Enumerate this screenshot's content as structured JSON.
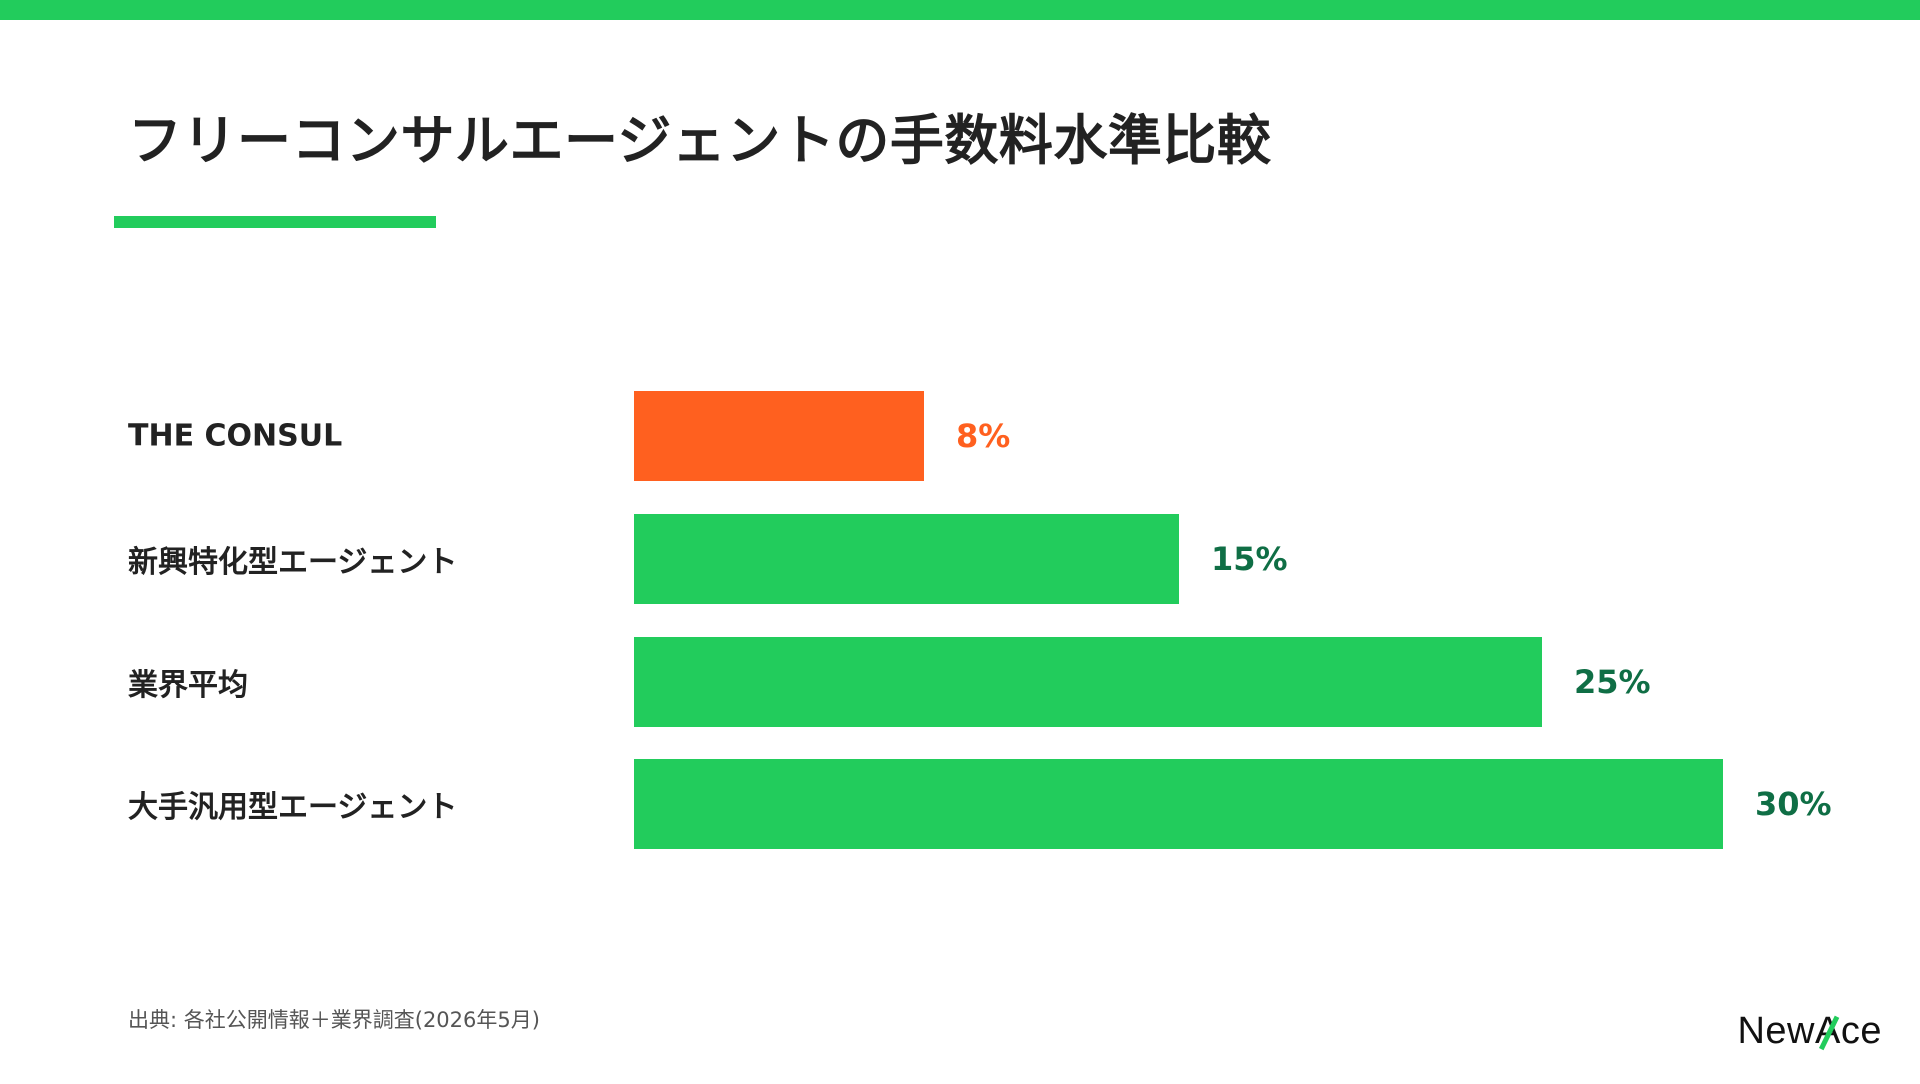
{
  "colors": {
    "accent_green": "#22CC5C",
    "highlight_orange": "#FF601F",
    "value_green_text": "#0F6E45",
    "title_text": "#222222"
  },
  "header": {
    "title": "フリーコンサルエージェントの手数料水準比較"
  },
  "footer": {
    "source": "出典: 各社公開情報＋業界調査(2026年5月)",
    "logo_prefix": "NewA",
    "logo_suffix": "ce"
  },
  "chart_data": {
    "type": "bar",
    "orientation": "horizontal",
    "title": "フリーコンサルエージェントの手数料水準比較",
    "categories": [
      "THE CONSUL",
      "新興特化型エージェント",
      "業界平均",
      "大手汎用型エージェント"
    ],
    "values": [
      8,
      15,
      25,
      30
    ],
    "value_labels": [
      "8%",
      "15%",
      "25%",
      "30%"
    ],
    "unit": "%",
    "highlight_index": 0,
    "xlim": [
      0,
      30
    ],
    "grid": false,
    "legend": "none"
  }
}
